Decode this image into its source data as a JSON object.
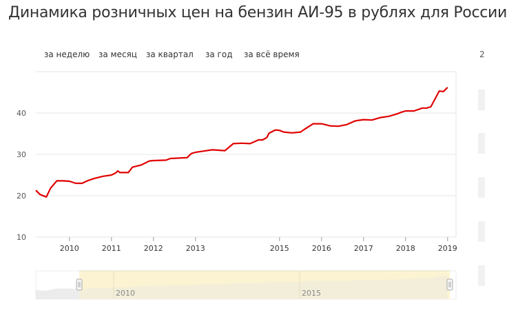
{
  "title": "Динамика розничных цен на бензин АИ-95 в рублях для России",
  "tabs": [
    {
      "label": "за неделю"
    },
    {
      "label": "за месяц"
    },
    {
      "label": "за квартал"
    },
    {
      "label": "за год"
    },
    {
      "label": "за всё время"
    }
  ],
  "side_fragment": "2",
  "colors": {
    "line": "#e00000",
    "grid": "#e6e6e6",
    "navigator_fill": "#fbf3d2",
    "navigator_area": "#e5e5e5"
  },
  "chart_data": {
    "type": "line",
    "title": "Динамика розничных цен на бензин АИ-95 в рублях для России",
    "xlabel": "",
    "ylabel": "",
    "xlim": [
      2009.2,
      2019.2
    ],
    "ylim": [
      10,
      50
    ],
    "y_ticks": [
      10,
      20,
      30,
      40
    ],
    "x_ticks": [
      2010,
      2011,
      2012,
      2013,
      2015,
      2016,
      2017,
      2018,
      2019
    ],
    "x_tick_labels": [
      "2010",
      "2011",
      "2012",
      "2013",
      "2015",
      "2016",
      "2017",
      "2018",
      "2019"
    ],
    "grid": true,
    "series": [
      {
        "x": [
          2009.2,
          2009.3,
          2009.45,
          2009.55,
          2009.7,
          2009.85,
          2010.0,
          2010.15,
          2010.3,
          2010.45,
          2010.6,
          2010.8,
          2011.0,
          2011.1,
          2011.15,
          2011.2,
          2011.4,
          2011.5,
          2011.7,
          2011.9,
          2012.0,
          2012.3,
          2012.4,
          2012.6,
          2012.8,
          2012.9,
          2013.0,
          2013.2,
          2013.4,
          2013.7,
          2013.9,
          2014.1,
          2014.3,
          2014.5,
          2014.6,
          2014.7,
          2014.75,
          2014.9,
          2015.0,
          2015.1,
          2015.3,
          2015.5,
          2015.6,
          2015.8,
          2016.0,
          2016.2,
          2016.4,
          2016.6,
          2016.8,
          2017.0,
          2017.2,
          2017.4,
          2017.6,
          2017.8,
          2017.9,
          2018.0,
          2018.2,
          2018.4,
          2018.5,
          2018.6,
          2018.8,
          2018.9,
          2019.0
        ],
        "y": [
          21.3,
          20.3,
          19.7,
          21.8,
          23.6,
          23.6,
          23.5,
          23.0,
          23.0,
          23.7,
          24.2,
          24.7,
          25.0,
          25.5,
          26.0,
          25.6,
          25.6,
          26.9,
          27.4,
          28.4,
          28.5,
          28.6,
          29.0,
          29.1,
          29.2,
          30.2,
          30.5,
          30.8,
          31.1,
          30.9,
          32.6,
          32.7,
          32.6,
          33.5,
          33.5,
          34.1,
          35.1,
          35.9,
          35.8,
          35.4,
          35.2,
          35.4,
          36.1,
          37.4,
          37.4,
          36.9,
          36.8,
          37.2,
          38.1,
          38.4,
          38.3,
          38.9,
          39.2,
          39.8,
          40.2,
          40.5,
          40.5,
          41.2,
          41.2,
          41.5,
          45.3,
          45.2,
          46.2
        ]
      }
    ]
  }
}
